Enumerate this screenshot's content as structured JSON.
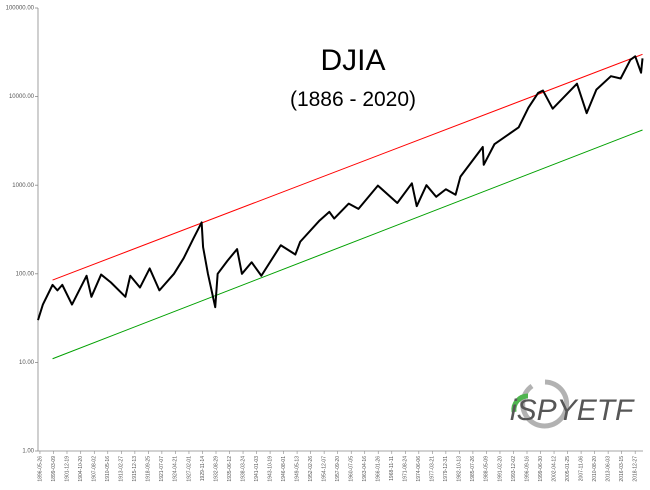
{
  "chart_data": {
    "type": "line",
    "title": "DJIA",
    "subtitle": "(1886 - 2020)",
    "watermark": "iSPYETF",
    "log_y": true,
    "ylim": [
      1,
      100000
    ],
    "yticks": [
      {
        "value": 1,
        "label": "1.00"
      },
      {
        "value": 10,
        "label": "10.00"
      },
      {
        "value": 100,
        "label": "100.00"
      },
      {
        "value": 1000,
        "label": "1000.00"
      },
      {
        "value": 10000,
        "label": "10000.00"
      },
      {
        "value": 100000,
        "label": "100000.00"
      }
    ],
    "xlim": [
      1896.0,
      2020.6
    ],
    "xticks": [
      {
        "value": 1896.4,
        "label": "1896-05-26"
      },
      {
        "value": 1899.19,
        "label": "1899-03-09"
      },
      {
        "value": 1901.97,
        "label": "1901-12-19"
      },
      {
        "value": 1904.8,
        "label": "1904-10-20"
      },
      {
        "value": 1907.59,
        "label": "1907-08-02"
      },
      {
        "value": 1910.37,
        "label": "1910-05-16"
      },
      {
        "value": 1913.16,
        "label": "1913-02-27"
      },
      {
        "value": 1915.95,
        "label": "1915-12-13"
      },
      {
        "value": 1918.73,
        "label": "1918-09-25"
      },
      {
        "value": 1921.51,
        "label": "1921-07-07"
      },
      {
        "value": 1924.3,
        "label": "1924-04-21"
      },
      {
        "value": 1927.09,
        "label": "1927-02-01"
      },
      {
        "value": 1929.87,
        "label": "1929-11-14"
      },
      {
        "value": 1932.66,
        "label": "1932-08-29"
      },
      {
        "value": 1935.44,
        "label": "1935-06-12"
      },
      {
        "value": 1938.23,
        "label": "1938-03-24"
      },
      {
        "value": 1941.01,
        "label": "1941-01-03"
      },
      {
        "value": 1943.8,
        "label": "1943-10-19"
      },
      {
        "value": 1946.58,
        "label": "1946-08-01"
      },
      {
        "value": 1949.36,
        "label": "1949-05-13"
      },
      {
        "value": 1952.15,
        "label": "1952-02-26"
      },
      {
        "value": 1954.93,
        "label": "1954-12-07"
      },
      {
        "value": 1957.72,
        "label": "1957-09-20"
      },
      {
        "value": 1960.51,
        "label": "1960-07-05"
      },
      {
        "value": 1963.29,
        "label": "1963-04-16"
      },
      {
        "value": 1966.07,
        "label": "1966-01-26"
      },
      {
        "value": 1968.86,
        "label": "1968-11-11"
      },
      {
        "value": 1971.65,
        "label": "1971-08-24"
      },
      {
        "value": 1974.43,
        "label": "1974-06-06"
      },
      {
        "value": 1977.22,
        "label": "1977-03-21"
      },
      {
        "value": 1980.0,
        "label": "1979-12-31"
      },
      {
        "value": 1982.78,
        "label": "1982-10-13"
      },
      {
        "value": 1985.57,
        "label": "1985-07-26"
      },
      {
        "value": 1988.35,
        "label": "1988-05-09"
      },
      {
        "value": 1991.14,
        "label": "1991-02-20"
      },
      {
        "value": 1993.92,
        "label": "1993-12-02"
      },
      {
        "value": 1996.71,
        "label": "1996-09-16"
      },
      {
        "value": 1999.5,
        "label": "1999-06-30"
      },
      {
        "value": 2002.28,
        "label": "2002-04-12"
      },
      {
        "value": 2005.07,
        "label": "2005-01-25"
      },
      {
        "value": 2007.85,
        "label": "2007-11-06"
      },
      {
        "value": 2010.64,
        "label": "2010-08-20"
      },
      {
        "value": 2013.42,
        "label": "2013-06-03"
      },
      {
        "value": 2016.2,
        "label": "2016-03-15"
      },
      {
        "value": 2018.99,
        "label": "2018-12-27"
      }
    ],
    "series": [
      {
        "color": "#000000",
        "x": [
          1896.0,
          1897,
          1899,
          1900,
          1901,
          1903,
          1906,
          1907,
          1909,
          1911,
          1914,
          1915,
          1917,
          1919,
          1921,
          1924,
          1926,
          1928,
          1929.7,
          1930,
          1931,
          1932.5,
          1933,
          1935,
          1937,
          1938,
          1940,
          1942,
          1946,
          1949,
          1950,
          1954,
          1956,
          1957,
          1960,
          1962,
          1966,
          1970,
          1973,
          1974,
          1976,
          1978,
          1980,
          1982,
          1983,
          1987.6,
          1987.8,
          1990,
          1995,
          1997,
          1999,
          2000,
          2002,
          2007,
          2009,
          2011,
          2014,
          2016,
          2018,
          2019,
          2020.2,
          2020.5
        ],
        "values": [
          30,
          45,
          75,
          65,
          75,
          45,
          95,
          55,
          98,
          80,
          55,
          95,
          70,
          115,
          65,
          100,
          150,
          250,
          380,
          200,
          100,
          42,
          100,
          140,
          190,
          100,
          135,
          95,
          210,
          165,
          230,
          400,
          500,
          420,
          620,
          540,
          990,
          630,
          1050,
          580,
          1000,
          740,
          900,
          780,
          1250,
          2700,
          1700,
          2900,
          4500,
          7500,
          11000,
          11700,
          7300,
          14000,
          6500,
          12000,
          17000,
          16000,
          26000,
          28500,
          18600,
          27000
        ]
      },
      {
        "color": "#ff0000",
        "x": [
          1899,
          2020.5
        ],
        "values": [
          85,
          30000
        ]
      },
      {
        "color": "#00a000",
        "x": [
          1899,
          2020.5
        ],
        "values": [
          11,
          4200
        ]
      }
    ]
  }
}
